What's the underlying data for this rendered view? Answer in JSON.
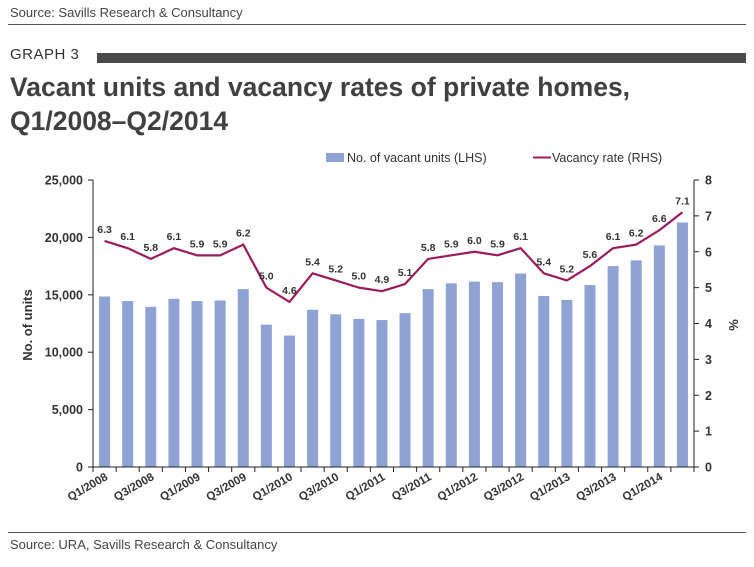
{
  "header": {
    "source_top": "Source: Savills Research & Consultancy",
    "graph_label": "GRAPH 3",
    "title_line1": "Vacant units and vacancy rates of private homes,",
    "title_line2": "Q1/2008–Q2/2014"
  },
  "footer": {
    "source_bottom": "Source: URA, Savills Research & Consultancy"
  },
  "colors": {
    "bar": "#8ea3d4",
    "line": "#9c1b5a",
    "axis": "#222222"
  },
  "chart_data": {
    "type": "bar+line",
    "categories": [
      "Q1/2008",
      "Q2/2008",
      "Q3/2008",
      "Q4/2008",
      "Q1/2009",
      "Q2/2009",
      "Q3/2009",
      "Q4/2009",
      "Q1/2010",
      "Q2/2010",
      "Q3/2010",
      "Q4/2010",
      "Q1/2011",
      "Q2/2011",
      "Q3/2011",
      "Q4/2011",
      "Q1/2012",
      "Q2/2012",
      "Q3/2012",
      "Q4/2012",
      "Q1/2013",
      "Q2/2013",
      "Q3/2013",
      "Q4/2013",
      "Q1/2014",
      "Q2/2014"
    ],
    "xtick_labels": [
      "Q1/2008",
      "Q3/2008",
      "Q1/2009",
      "Q3/2009",
      "Q1/2010",
      "Q3/2010",
      "Q1/2011",
      "Q3/2011",
      "Q1/2012",
      "Q3/2012",
      "Q1/2013",
      "Q3/2013",
      "Q1/2014"
    ],
    "series": [
      {
        "name": "No. of vacant units (LHS)",
        "type": "bar",
        "axis": "left",
        "values": [
          14850,
          14450,
          13950,
          14650,
          14450,
          14500,
          15500,
          12400,
          11450,
          13700,
          13300,
          12900,
          12800,
          13400,
          15500,
          16000,
          16150,
          16100,
          16850,
          14900,
          14550,
          15850,
          17500,
          18000,
          19300,
          21300
        ]
      },
      {
        "name": "Vacancy rate (RHS)",
        "type": "line",
        "axis": "right",
        "values": [
          6.3,
          6.1,
          5.8,
          6.1,
          5.9,
          5.9,
          6.2,
          5.0,
          4.6,
          5.4,
          5.2,
          5.0,
          4.9,
          5.1,
          5.8,
          5.9,
          6.0,
          5.9,
          6.1,
          5.4,
          5.2,
          5.6,
          6.1,
          6.2,
          6.6,
          7.1
        ],
        "labels": [
          "6.3",
          "6.1",
          "5.8",
          "6.1",
          "5.9",
          "5.9",
          "6.2",
          "5.0",
          "4.6",
          "5.4",
          "5.2",
          "5.0",
          "4.9",
          "5.1",
          "5.8",
          "5.9",
          "6.0",
          "5.9",
          "6.1",
          "5.4",
          "5.2",
          "5.6",
          "6.1",
          "6.2",
          "6.6",
          "7.1"
        ]
      }
    ],
    "y_left": {
      "label": "No. of units",
      "min": 0,
      "max": 25000,
      "ticks": [
        "0",
        "5,000",
        "10,000",
        "15,000",
        "20,000",
        "25,000"
      ]
    },
    "y_right": {
      "label": "%",
      "min": 0,
      "max": 8,
      "ticks": [
        "0",
        "1",
        "2",
        "3",
        "4",
        "5",
        "6",
        "7",
        "8"
      ]
    },
    "legend": [
      "No. of vacant units (LHS)",
      "Vacancy rate (RHS)"
    ],
    "grid": false
  }
}
